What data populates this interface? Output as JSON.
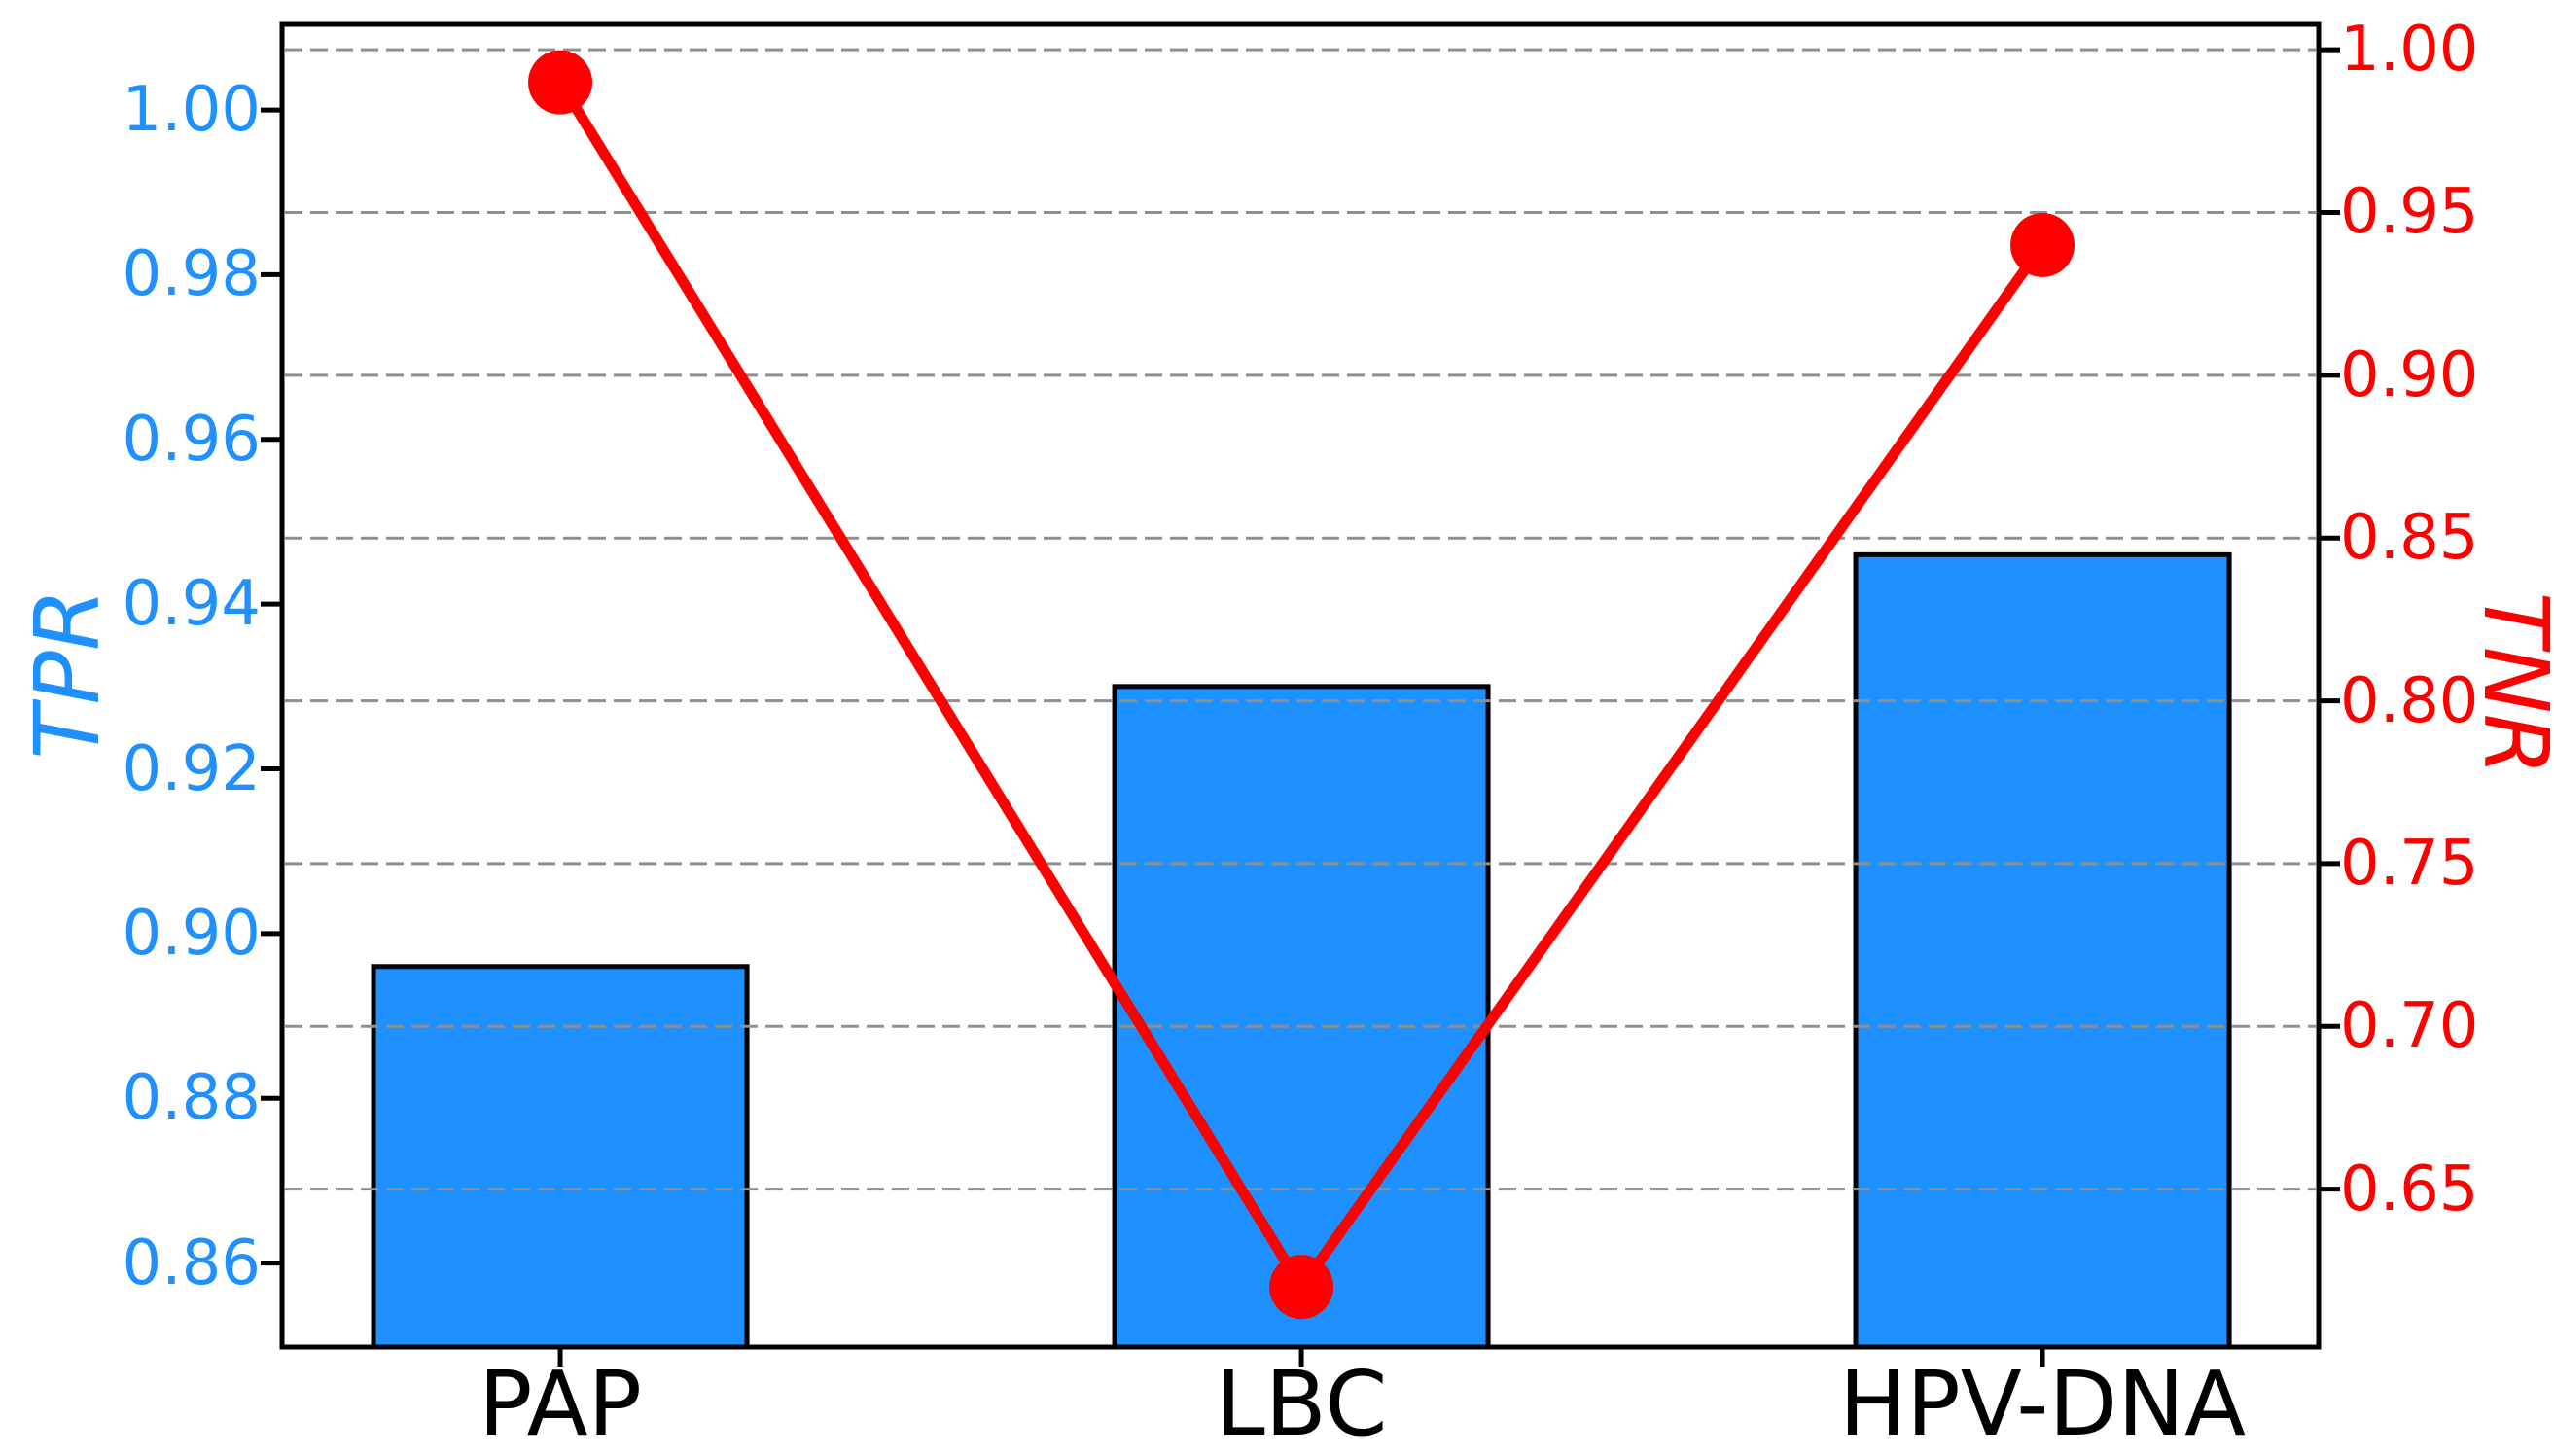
{
  "chart_data": {
    "type": "bar",
    "subtype": "dual-axis-bar-line-combo",
    "categories": [
      "PAP",
      "LBC",
      "HPV-DNA"
    ],
    "series": [
      {
        "name": "TPR",
        "type": "bar",
        "axis": "left",
        "color": "#1E90FF",
        "edge_color": "#000000",
        "values": [
          0.896,
          0.93,
          0.946
        ]
      },
      {
        "name": "TNR",
        "type": "line",
        "axis": "right",
        "color": "#FF0000",
        "marker": "circle",
        "values": [
          0.99,
          0.62,
          0.94
        ]
      }
    ],
    "title": "",
    "xlabel": "",
    "left_axis": {
      "label": "TPR",
      "color": "#1E90FF",
      "range": [
        0.8498,
        1.0104
      ],
      "tick_values": [
        1.0,
        0.98,
        0.96,
        0.94,
        0.92,
        0.9,
        0.88,
        0.86
      ],
      "tick_labels": [
        "1.00",
        "0.98",
        "0.96",
        "0.94",
        "0.92",
        "0.90",
        "0.88",
        "0.86"
      ]
    },
    "right_axis": {
      "label": "TNR",
      "color": "#FF0000",
      "range": [
        0.6015,
        1.0078
      ],
      "tick_values": [
        1.0,
        0.95,
        0.9,
        0.85,
        0.8,
        0.75,
        0.7,
        0.65
      ],
      "tick_labels": [
        "1.00",
        "0.95",
        "0.90",
        "0.85",
        "0.80",
        "0.75",
        "0.70",
        "0.65"
      ]
    },
    "grid": {
      "horizontal": true,
      "style": "dashed",
      "aligned_to": "right_axis",
      "color": "#8f8f8f"
    },
    "spine_color": "#000000",
    "background": "#ffffff"
  }
}
